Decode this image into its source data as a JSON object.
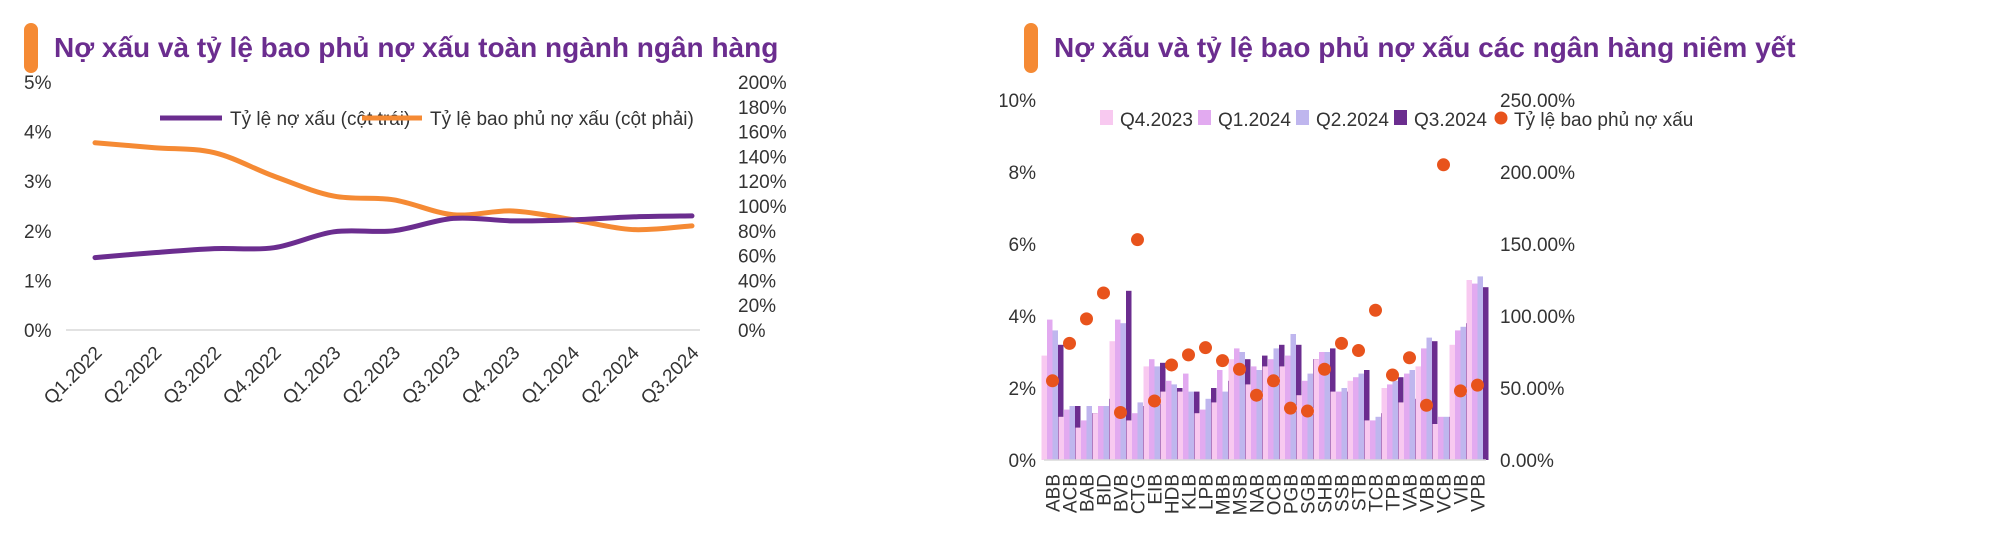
{
  "colors": {
    "accent": "#f58a34",
    "title": "#6b2d8f",
    "npl_line": "#6b2d8f",
    "coverage_line": "#f58a34",
    "q4_2023": "#f8c9f0",
    "q1_2024": "#e2aaf0",
    "q2_2024": "#bfb6ee",
    "q3_2024": "#6b2d8f",
    "coverage_dot": "#e8531c"
  },
  "left": {
    "title": "Nợ xấu và tỷ lệ bao phủ nợ xấu toàn ngành ngân hàng"
  },
  "right": {
    "title": "Nợ xấu và tỷ lệ bao phủ nợ xấu các ngân hàng niêm yết"
  },
  "chart_data": [
    {
      "type": "line",
      "title": "Nợ xấu và tỷ lệ bao phủ nợ xấu toàn ngành ngân hàng",
      "categories": [
        "Q1.2022",
        "Q2.2022",
        "Q3.2022",
        "Q4.2022",
        "Q1.2023",
        "Q2.2023",
        "Q3.2023",
        "Q4.2023",
        "Q1.2024",
        "Q2.2024",
        "Q3.2024"
      ],
      "legend_position": "top",
      "series": [
        {
          "name": "Tỷ lệ nợ xấu (cột trái)",
          "axis": "left",
          "color": "#6b2d8f",
          "values": [
            1.46,
            1.56,
            1.64,
            1.66,
            1.98,
            2.0,
            2.25,
            2.2,
            2.22,
            2.28,
            2.3
          ]
        },
        {
          "name": "Tỷ lệ bao phủ nợ xấu (cột phải)",
          "axis": "right",
          "color": "#f58a34",
          "values": [
            151,
            147,
            143,
            124,
            108,
            105,
            93,
            96,
            89,
            81,
            84
          ]
        }
      ],
      "y_left": {
        "min": 0,
        "max": 5,
        "ticks": [
          "0%",
          "1%",
          "2%",
          "3%",
          "4%",
          "5%"
        ]
      },
      "y_right": {
        "min": 0,
        "max": 200,
        "ticks": [
          "0%",
          "20%",
          "40%",
          "60%",
          "80%",
          "100%",
          "120%",
          "140%",
          "160%",
          "180%",
          "200%"
        ]
      }
    },
    {
      "type": "bar",
      "title": "Nợ xấu và tỷ lệ bao phủ nợ xấu các ngân hàng niêm yết",
      "categories": [
        "ABB",
        "ACB",
        "BAB",
        "BID",
        "BVB",
        "CTG",
        "EIB",
        "HDB",
        "KLB",
        "LPB",
        "MBB",
        "MSB",
        "NAB",
        "OCB",
        "PGB",
        "SGB",
        "SHB",
        "SSB",
        "STB",
        "TCB",
        "TPB",
        "VAB",
        "VBB",
        "VCB",
        "VIB",
        "VPB"
      ],
      "legend_position": "top",
      "series": [
        {
          "name": "Q4.2023",
          "axis": "left",
          "color": "#f8c9f0",
          "values": [
            2.9,
            1.2,
            0.9,
            1.3,
            3.3,
            1.1,
            2.6,
            1.9,
            1.9,
            1.3,
            1.6,
            2.8,
            2.1,
            2.6,
            2.6,
            1.8,
            2.8,
            1.9,
            2.2,
            1.1,
            2.0,
            1.6,
            2.6,
            1.0,
            3.2,
            5.0
          ]
        },
        {
          "name": "Q1.2024",
          "axis": "left",
          "color": "#e2aaf0",
          "values": [
            3.9,
            1.4,
            1.1,
            1.5,
            3.9,
            1.3,
            2.8,
            2.2,
            2.4,
            1.4,
            2.5,
            3.1,
            2.6,
            2.8,
            2.9,
            2.2,
            3.0,
            1.9,
            2.3,
            1.1,
            2.1,
            2.4,
            3.1,
            1.2,
            3.6,
            4.9
          ]
        },
        {
          "name": "Q2.2024",
          "axis": "left",
          "color": "#bfb6ee",
          "values": [
            3.6,
            1.5,
            1.5,
            1.5,
            3.8,
            1.6,
            2.6,
            2.1,
            1.9,
            1.7,
            1.9,
            3.0,
            2.5,
            3.1,
            3.5,
            2.4,
            3.0,
            2.0,
            2.4,
            1.2,
            2.2,
            2.5,
            3.4,
            1.2,
            3.7,
            5.1
          ]
        },
        {
          "name": "Q3.2024",
          "axis": "left",
          "color": "#6b2d8f",
          "values": [
            3.2,
            1.5,
            1.3,
            1.7,
            4.7,
            1.5,
            2.7,
            2.0,
            1.9,
            2.0,
            2.2,
            2.8,
            2.9,
            3.2,
            3.2,
            2.8,
            3.1,
            1.9,
            2.5,
            1.3,
            2.3,
            1.7,
            3.3,
            1.2,
            3.8,
            4.8
          ]
        },
        {
          "name": "Tỷ lệ bao phủ nợ xấu",
          "axis": "right",
          "kind": "scatter",
          "color": "#e8531c",
          "values": [
            55,
            81,
            98,
            116,
            33,
            153,
            41,
            66,
            73,
            78,
            69,
            63,
            45,
            55,
            36,
            34,
            63,
            81,
            76,
            104,
            59,
            71,
            38,
            205,
            48,
            52
          ]
        }
      ],
      "y_left": {
        "min": 0,
        "max": 10,
        "ticks": [
          "0%",
          "2%",
          "4%",
          "6%",
          "8%",
          "10%"
        ]
      },
      "y_right": {
        "min": 0,
        "max": 250,
        "ticks": [
          "0.00%",
          "50.00%",
          "100.00%",
          "150.00%",
          "200.00%",
          "250.00%"
        ]
      }
    }
  ]
}
